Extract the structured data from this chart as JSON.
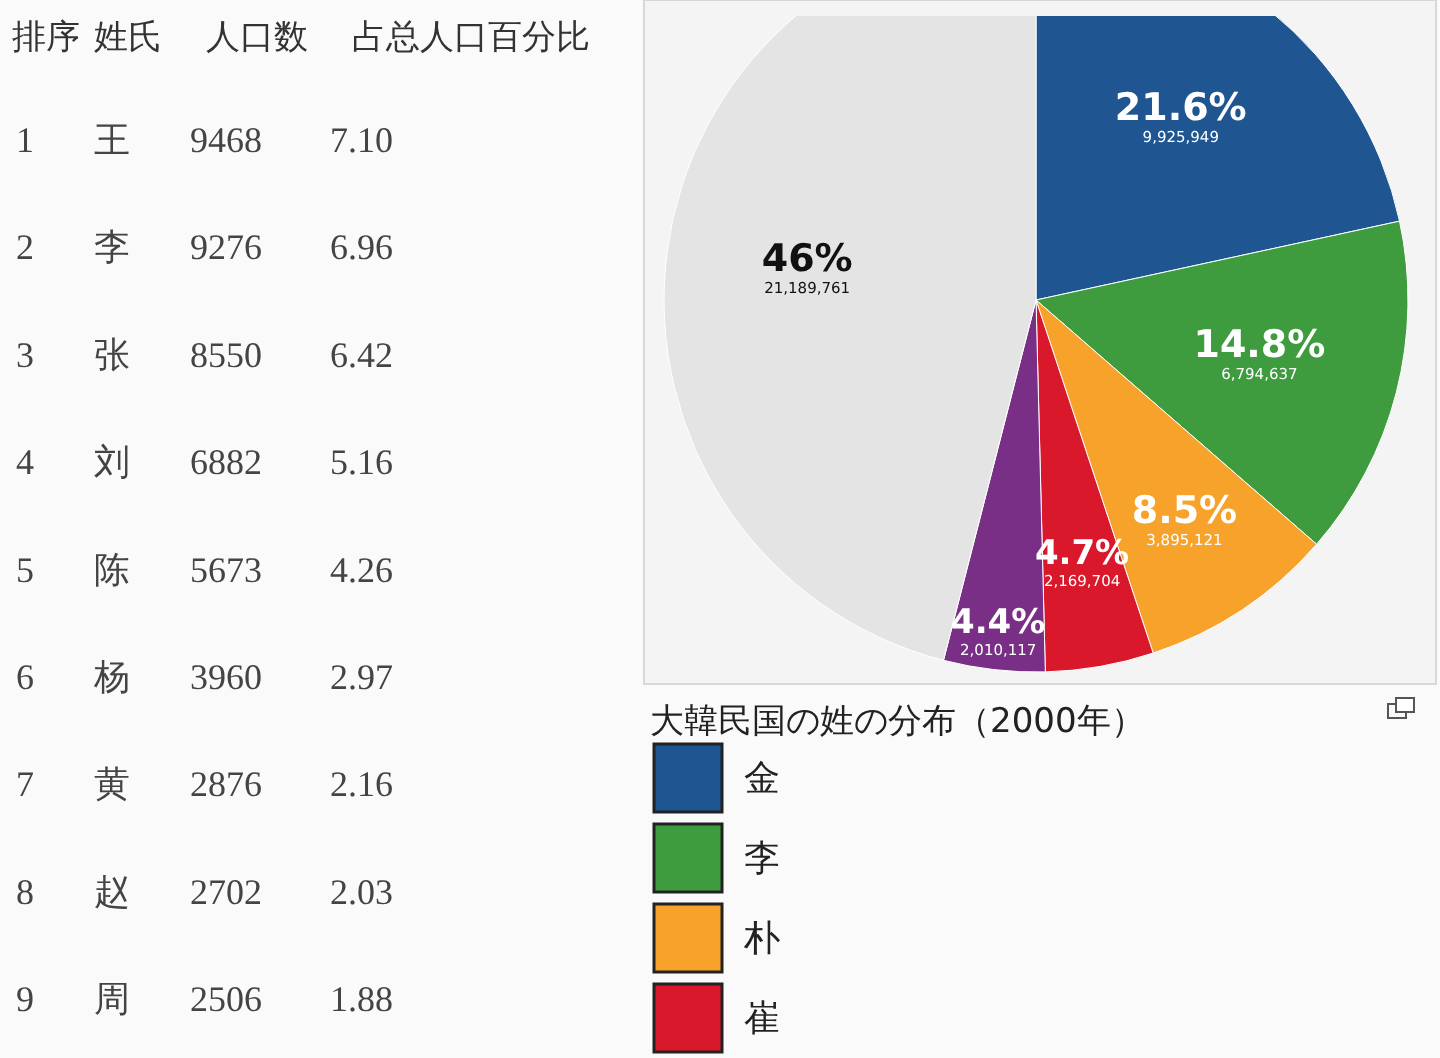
{
  "chart_data": [
    {
      "type": "other",
      "xlabel": "姓氏",
      "categories": [
        "王",
        "李",
        "张",
        "刘",
        "陈",
        "杨",
        "黄",
        "赵",
        "周"
      ],
      "data_labels": true,
      "series": [
        {
          "name": "排序",
          "values": [
            1,
            2,
            3,
            4,
            5,
            6,
            7,
            8,
            9
          ]
        },
        {
          "name": "人口数",
          "values": [
            9468,
            9276,
            8550,
            6882,
            5673,
            3960,
            2876,
            2702,
            2506
          ]
        },
        {
          "name": "占总人口百分比",
          "values": [
            7.1,
            6.96,
            6.42,
            5.16,
            4.26,
            2.97,
            2.16,
            2.03,
            1.88
          ],
          "value_labels": [
            "7.10",
            "6.96",
            "6.42",
            "5.16",
            "4.26",
            "2.97",
            "2.16",
            "2.03",
            "1.88"
          ]
        }
      ]
    },
    {
      "type": "pie",
      "title": "大韓民国の姓の分布（2000年）",
      "legend": "bottom",
      "categories": [
        "金",
        "李",
        "朴",
        "崔",
        null,
        null
      ],
      "values": [
        21.6,
        14.8,
        8.5,
        4.7,
        4.4,
        46
      ],
      "colors": [
        "#1f5591",
        "#3e9b3e",
        "#f7a22a",
        "#d9182b",
        "#7a2f86",
        "#e4e4e4"
      ],
      "value_labels": [
        "21.6%$_{9,925,949}$",
        "14.8%$_{6,794,637}$",
        "8.5%$_{3,895,121}$",
        "4.7%$_{2,169,704}$",
        "4.4%$_{2,010,117}$",
        "46%$_{21,189,761}$"
      ]
    }
  ]
}
